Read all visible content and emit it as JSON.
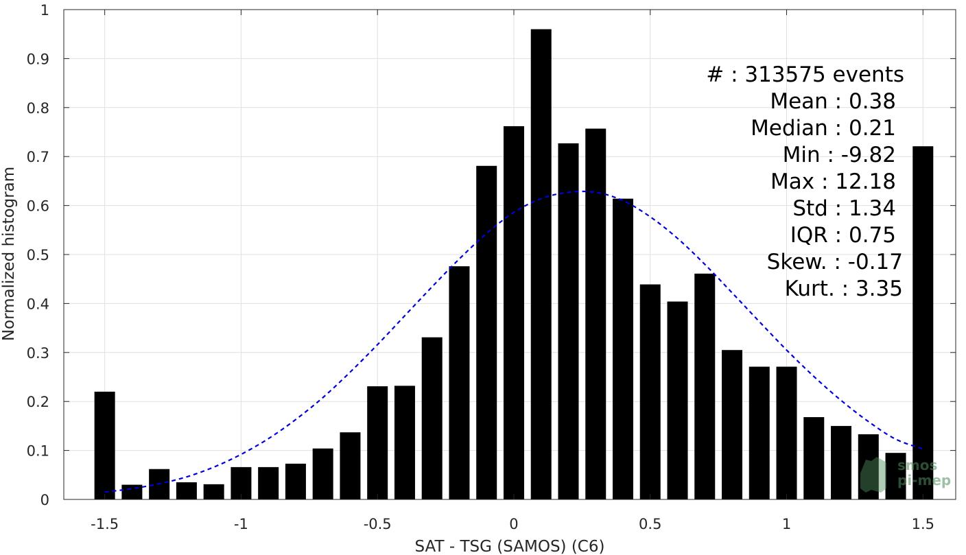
{
  "chart_data": {
    "type": "bar",
    "xlabel": "SAT - TSG (SAMOS) (C6)",
    "ylabel": "Normalized histogram",
    "xlim": [
      -1.65,
      1.62
    ],
    "ylim": [
      0,
      1
    ],
    "grid": true,
    "x_ticks": [
      -1.5,
      -1,
      -0.5,
      0,
      0.5,
      1,
      1.5
    ],
    "x_tick_labels": [
      "-1.5",
      "-1",
      "-0.5",
      "0",
      "0.5",
      "1",
      "1.5"
    ],
    "y_ticks": [
      0,
      0.1,
      0.2,
      0.3,
      0.4,
      0.5,
      0.6,
      0.7,
      0.8,
      0.9,
      1
    ],
    "y_tick_labels": [
      "0",
      "0.1",
      "0.2",
      "0.3",
      "0.4",
      "0.5",
      "0.6",
      "0.7",
      "0.8",
      "0.9",
      "1"
    ],
    "bar_color": "#000000",
    "series": [
      {
        "x": [
          -1.5,
          -1.4,
          -1.3,
          -1.2,
          -1.1,
          -1.0,
          -0.9,
          -0.8,
          -0.7,
          -0.6,
          -0.5,
          -0.4,
          -0.3,
          -0.2,
          -0.1,
          0.0,
          0.1,
          0.2,
          0.3,
          0.4,
          0.5,
          0.6,
          0.7,
          0.8,
          0.9,
          1.0,
          1.1,
          1.2,
          1.3,
          1.4,
          1.5
        ],
        "values": [
          0.22,
          0.03,
          0.062,
          0.035,
          0.031,
          0.066,
          0.066,
          0.073,
          0.104,
          0.137,
          0.231,
          0.232,
          0.331,
          0.476,
          0.681,
          0.762,
          0.96,
          0.727,
          0.757,
          0.614,
          0.439,
          0.404,
          0.461,
          0.305,
          0.271,
          0.271,
          0.168,
          0.15,
          0.133,
          0.095,
          0.721
        ]
      }
    ],
    "fit_curve": {
      "style": "dashed",
      "color": "#0000dd",
      "x": [
        -1.5,
        -1.4,
        -1.3,
        -1.2,
        -1.1,
        -1.0,
        -0.9,
        -0.8,
        -0.7,
        -0.6,
        -0.5,
        -0.4,
        -0.3,
        -0.2,
        -0.1,
        0.0,
        0.1,
        0.2,
        0.3,
        0.4,
        0.5,
        0.6,
        0.7,
        0.8,
        0.9,
        1.0,
        1.1,
        1.2,
        1.3,
        1.4,
        1.5
      ],
      "y": [
        0.015,
        0.022,
        0.032,
        0.046,
        0.066,
        0.092,
        0.124,
        0.163,
        0.208,
        0.26,
        0.316,
        0.375,
        0.434,
        0.491,
        0.543,
        0.586,
        0.614,
        0.627,
        0.627,
        0.61,
        0.577,
        0.533,
        0.48,
        0.422,
        0.363,
        0.305,
        0.251,
        0.202,
        0.159,
        0.123,
        0.103
      ]
    }
  },
  "stats": [
    {
      "label": "#  : 313575 events"
    },
    {
      "label": "Mean : 0.38"
    },
    {
      "label": "Median : 0.21"
    },
    {
      "label": "Min : -9.82"
    },
    {
      "label": "Max : 12.18"
    },
    {
      "label": "Std : 1.34"
    },
    {
      "label": "IQR : 0.75"
    },
    {
      "label": "Skew. : -0.17"
    },
    {
      "label": "Kurt. : 3.35"
    }
  ],
  "watermark": {
    "line1": "smos",
    "line2": "pi-mep"
  }
}
